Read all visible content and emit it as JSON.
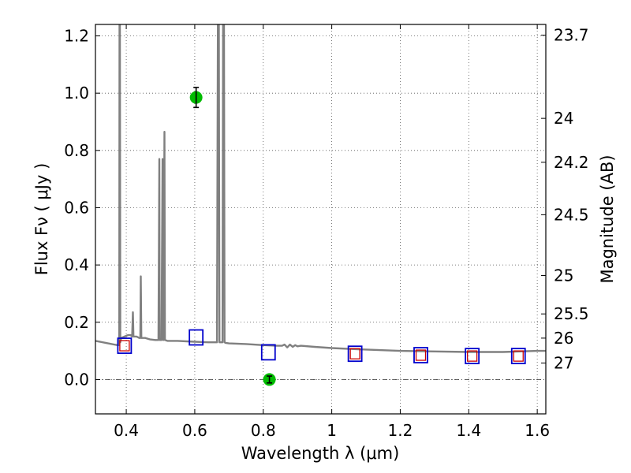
{
  "chart_data": {
    "type": "scatter",
    "xlabel": "Wavelength  λ (μm)",
    "ylabel": "Flux  Fν  ( μJy )",
    "ylabel_right": "Magnitude (AB)",
    "xlim": [
      0.31,
      1.625
    ],
    "ylim": [
      -0.12,
      1.24
    ],
    "grid": true,
    "x_ticks": [
      0.4,
      0.6,
      0.8,
      1.0,
      1.2,
      1.4,
      1.6
    ],
    "x_tick_labels": [
      "0.4",
      "0.6",
      "0.8",
      "1",
      "1.2",
      "1.4",
      "1.6"
    ],
    "y_ticks": [
      0.0,
      0.2,
      0.4,
      0.6,
      0.8,
      1.0,
      1.2
    ],
    "y_tick_labels": [
      "0.0",
      "0.2",
      "0.4",
      "0.6",
      "0.8",
      "1.0",
      "1.2"
    ],
    "mag_ticks": [
      23.7,
      24,
      24.2,
      24.5,
      25,
      25.5,
      26,
      27
    ],
    "mag_tick_labels": [
      "23.7",
      "24",
      "24.2",
      "24.5",
      "25",
      "25.5",
      "26",
      "27"
    ],
    "zero_line": 0.0,
    "colors": {
      "spectrum": "#808080",
      "observed": "#00bb00",
      "model": "#0000cc",
      "model_inner": "#cc0000",
      "errorbar": "#000000"
    },
    "series": [
      {
        "name": "SED model spectrum",
        "kind": "line",
        "x": [
          0.31,
          0.34,
          0.37,
          0.3795,
          0.3805,
          0.3812,
          0.3825,
          0.385,
          0.395,
          0.405,
          0.413,
          0.417,
          0.4195,
          0.421,
          0.425,
          0.43,
          0.438,
          0.441,
          0.4425,
          0.444,
          0.447,
          0.455,
          0.47,
          0.485,
          0.494,
          0.4965,
          0.4975,
          0.499,
          0.503,
          0.506,
          0.5075,
          0.509,
          0.5115,
          0.513,
          0.52,
          0.55,
          0.6,
          0.64,
          0.665,
          0.668,
          0.67,
          0.672,
          0.674,
          0.678,
          0.681,
          0.683,
          0.685,
          0.687,
          0.69,
          0.7,
          0.75,
          0.8,
          0.84,
          0.855,
          0.862,
          0.87,
          0.878,
          0.886,
          0.893,
          0.9,
          0.91,
          0.95,
          1.0,
          1.07,
          1.2,
          1.3,
          1.4,
          1.5,
          1.6,
          1.625
        ],
        "y": [
          0.135,
          0.128,
          0.121,
          0.12,
          1.5,
          1.5,
          0.13,
          0.145,
          0.15,
          0.155,
          0.155,
          0.15,
          0.235,
          0.15,
          0.15,
          0.15,
          0.145,
          0.145,
          0.36,
          0.145,
          0.145,
          0.145,
          0.14,
          0.138,
          0.138,
          0.77,
          0.138,
          0.138,
          0.138,
          0.77,
          0.138,
          0.138,
          0.865,
          0.138,
          0.135,
          0.135,
          0.132,
          0.13,
          0.13,
          1.5,
          1.5,
          0.13,
          0.13,
          0.13,
          0.13,
          1.5,
          1.5,
          0.13,
          0.128,
          0.126,
          0.124,
          0.12,
          0.118,
          0.118,
          0.122,
          0.112,
          0.122,
          0.114,
          0.12,
          0.116,
          0.118,
          0.114,
          0.11,
          0.106,
          0.1,
          0.098,
          0.096,
          0.096,
          0.1,
          0.1
        ]
      },
      {
        "name": "Observed photometry",
        "kind": "points",
        "x": [
          0.604,
          0.818
        ],
        "y": [
          0.985,
          0.0
        ],
        "yerr": [
          0.035,
          0.012
        ]
      },
      {
        "name": "Model photometry",
        "kind": "squares",
        "x": [
          0.395,
          0.604,
          0.815,
          1.068,
          1.26,
          1.41,
          1.545
        ],
        "y": [
          0.118,
          0.147,
          0.095,
          0.09,
          0.085,
          0.082,
          0.082
        ]
      },
      {
        "name": "Model photometry (inner)",
        "kind": "small-squares",
        "x": [
          0.395,
          1.068,
          1.26,
          1.41,
          1.545
        ],
        "y": [
          0.118,
          0.09,
          0.085,
          0.082,
          0.082
        ]
      }
    ]
  }
}
